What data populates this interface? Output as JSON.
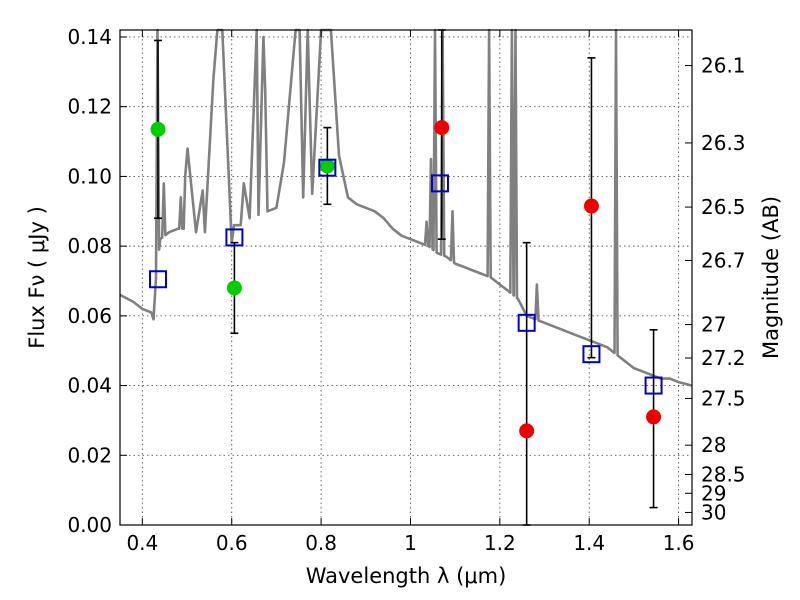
{
  "chart_data": {
    "type": "scatter",
    "xlabel": "Wavelength  λ (μm)",
    "ylabel": "Flux  Fν  ( μJy )",
    "ylabel_right": "Magnitude (AB)",
    "xlim": [
      0.35,
      1.63
    ],
    "ylim": [
      0.0,
      0.142
    ],
    "x_ticks": [
      0.4,
      0.6,
      0.8,
      1.0,
      1.2,
      1.4,
      1.6
    ],
    "x_tick_labels": [
      "0.4",
      "0.6",
      "0.8",
      "1",
      "1.2",
      "1.4",
      "1.6"
    ],
    "y_ticks": [
      0.0,
      0.02,
      0.04,
      0.06,
      0.08,
      0.1,
      0.12,
      0.14
    ],
    "y_tick_labels": [
      "0.00",
      "0.02",
      "0.04",
      "0.06",
      "0.08",
      "0.10",
      "0.12",
      "0.14"
    ],
    "right_ticks": [
      {
        "label": "26.1",
        "flux": 0.1318
      },
      {
        "label": "26.3",
        "flux": 0.1096
      },
      {
        "label": "26.5",
        "flux": 0.0912
      },
      {
        "label": "26.7",
        "flux": 0.0759
      },
      {
        "label": "27",
        "flux": 0.0575
      },
      {
        "label": "27.2",
        "flux": 0.0479
      },
      {
        "label": "27.5",
        "flux": 0.0363
      },
      {
        "label": "28",
        "flux": 0.0229
      },
      {
        "label": "28.5",
        "flux": 0.0145
      },
      {
        "label": "29",
        "flux": 0.0091
      },
      {
        "label": "30",
        "flux": 0.0036
      }
    ],
    "grid": true,
    "colors": {
      "model": "#808080",
      "green": "#00cc00",
      "red": "#ee0000",
      "square": "#0000cc",
      "errorbar": "#000000"
    },
    "model_continuum": [
      [
        0.35,
        0.066
      ],
      [
        0.38,
        0.064
      ],
      [
        0.4,
        0.062
      ],
      [
        0.42,
        0.061
      ],
      [
        0.425,
        0.059
      ],
      [
        0.43,
        0.07
      ],
      [
        0.44,
        0.082
      ],
      [
        0.46,
        0.084
      ],
      [
        0.48,
        0.085
      ],
      [
        0.5,
        0.085
      ],
      [
        0.52,
        0.084
      ],
      [
        0.54,
        0.084
      ],
      [
        0.56,
        0.084
      ],
      [
        0.58,
        0.081
      ],
      [
        0.6,
        0.081
      ],
      [
        0.62,
        0.086
      ],
      [
        0.64,
        0.088
      ],
      [
        0.66,
        0.089
      ],
      [
        0.68,
        0.09
      ],
      [
        0.7,
        0.091
      ],
      [
        0.72,
        0.092
      ],
      [
        0.74,
        0.093
      ],
      [
        0.76,
        0.094
      ],
      [
        0.78,
        0.095
      ],
      [
        0.8,
        0.096
      ],
      [
        0.82,
        0.097
      ],
      [
        0.84,
        0.096
      ],
      [
        0.86,
        0.094
      ],
      [
        0.88,
        0.092
      ],
      [
        0.9,
        0.091
      ],
      [
        0.92,
        0.09
      ],
      [
        0.94,
        0.088
      ],
      [
        0.96,
        0.085
      ],
      [
        0.98,
        0.083
      ],
      [
        1.0,
        0.082
      ],
      [
        1.02,
        0.081
      ],
      [
        1.04,
        0.08
      ],
      [
        1.06,
        0.078
      ],
      [
        1.08,
        0.077
      ],
      [
        1.1,
        0.075
      ],
      [
        1.12,
        0.074
      ],
      [
        1.14,
        0.073
      ],
      [
        1.16,
        0.072
      ],
      [
        1.18,
        0.071
      ],
      [
        1.2,
        0.069
      ],
      [
        1.22,
        0.067
      ],
      [
        1.24,
        0.065
      ],
      [
        1.26,
        0.06
      ],
      [
        1.28,
        0.059
      ],
      [
        1.3,
        0.058
      ],
      [
        1.32,
        0.057
      ],
      [
        1.34,
        0.056
      ],
      [
        1.36,
        0.055
      ],
      [
        1.38,
        0.054
      ],
      [
        1.4,
        0.053
      ],
      [
        1.42,
        0.052
      ],
      [
        1.44,
        0.051
      ],
      [
        1.46,
        0.049
      ],
      [
        1.48,
        0.047
      ],
      [
        1.5,
        0.045
      ],
      [
        1.52,
        0.044
      ],
      [
        1.54,
        0.043
      ],
      [
        1.56,
        0.042
      ],
      [
        1.58,
        0.042
      ],
      [
        1.6,
        0.041
      ],
      [
        1.63,
        0.04
      ]
    ],
    "model_lines": [
      {
        "x": 0.434,
        "peak": 0.142
      },
      {
        "x": 0.448,
        "peak": 0.098
      },
      {
        "x": 0.486,
        "peak": 0.094
      },
      {
        "x": 0.496,
        "peak": 0.1
      },
      {
        "x": 0.501,
        "peak": 0.108
      },
      {
        "x": 0.535,
        "peak": 0.096
      },
      {
        "x": 0.559,
        "peak": 0.128
      },
      {
        "x": 0.568,
        "peak": 0.142
      },
      {
        "x": 0.579,
        "peak": 0.142
      },
      {
        "x": 0.605,
        "peak": 0.086
      },
      {
        "x": 0.627,
        "peak": 0.098
      },
      {
        "x": 0.656,
        "peak": 0.142
      },
      {
        "x": 0.671,
        "peak": 0.14
      },
      {
        "x": 0.675,
        "peak": 0.125
      },
      {
        "x": 0.717,
        "peak": 0.104
      },
      {
        "x": 0.743,
        "peak": 0.142
      },
      {
        "x": 0.752,
        "peak": 0.142
      },
      {
        "x": 0.77,
        "peak": 0.142
      },
      {
        "x": 0.8,
        "peak": 0.142
      },
      {
        "x": 0.822,
        "peak": 0.142
      },
      {
        "x": 0.84,
        "peak": 0.106
      },
      {
        "x": 1.036,
        "peak": 0.087
      },
      {
        "x": 1.046,
        "peak": 0.105
      },
      {
        "x": 1.055,
        "peak": 0.142
      },
      {
        "x": 1.072,
        "peak": 0.142
      },
      {
        "x": 1.094,
        "peak": 0.09
      },
      {
        "x": 1.176,
        "peak": 0.142
      },
      {
        "x": 1.227,
        "peak": 0.142
      },
      {
        "x": 1.235,
        "peak": 0.142
      },
      {
        "x": 1.283,
        "peak": 0.069
      },
      {
        "x": 1.46,
        "peak": 0.142
      }
    ],
    "series": [
      {
        "marker": "green-circle",
        "points": [
          {
            "x": 0.435,
            "y": 0.1135,
            "ylo": 0.088,
            "yhi": 0.139
          },
          {
            "x": 0.606,
            "y": 0.068,
            "ylo": 0.055,
            "yhi": 0.081
          },
          {
            "x": 0.814,
            "y": 0.103,
            "ylo": 0.092,
            "yhi": 0.114
          }
        ]
      },
      {
        "marker": "red-circle",
        "points": [
          {
            "x": 1.07,
            "y": 0.114,
            "ylo": 0.082,
            "yhi": 0.142
          },
          {
            "x": 1.26,
            "y": 0.027,
            "ylo": 0.0,
            "yhi": 0.081
          },
          {
            "x": 1.405,
            "y": 0.0915,
            "ylo": 0.048,
            "yhi": 0.134
          },
          {
            "x": 1.544,
            "y": 0.031,
            "ylo": 0.005,
            "yhi": 0.056
          }
        ]
      },
      {
        "marker": "blue-square",
        "points": [
          {
            "x": 0.435,
            "y": 0.0705
          },
          {
            "x": 0.606,
            "y": 0.0825
          },
          {
            "x": 0.814,
            "y": 0.1025
          },
          {
            "x": 1.066,
            "y": 0.098
          },
          {
            "x": 1.26,
            "y": 0.058
          },
          {
            "x": 1.405,
            "y": 0.049
          },
          {
            "x": 1.544,
            "y": 0.04
          }
        ]
      }
    ]
  }
}
